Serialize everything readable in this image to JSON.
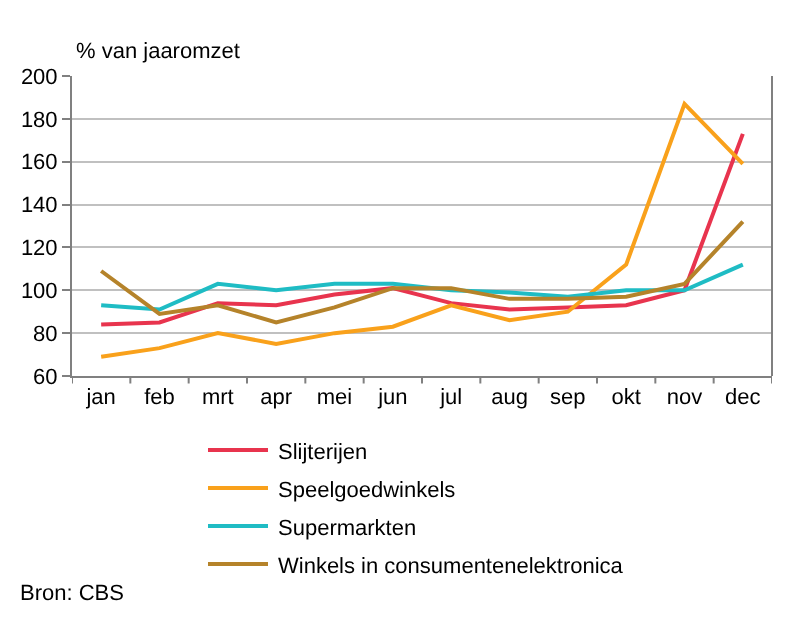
{
  "chart_data": {
    "type": "line",
    "ylabel": "% van jaaromzet",
    "categories": [
      "jan",
      "feb",
      "mrt",
      "apr",
      "mei",
      "jun",
      "jul",
      "aug",
      "sep",
      "okt",
      "nov",
      "dec"
    ],
    "series": [
      {
        "name": "Slijterijen",
        "color": "#e8344e",
        "values": [
          84,
          85,
          94,
          93,
          98,
          101,
          94,
          91,
          92,
          93,
          100,
          173
        ]
      },
      {
        "name": "Speelgoedwinkels",
        "color": "#f9a11b",
        "values": [
          69,
          73,
          80,
          75,
          80,
          83,
          93,
          86,
          90,
          112,
          187,
          159
        ]
      },
      {
        "name": "Supermarkten",
        "color": "#1fbcc4",
        "values": [
          93,
          91,
          103,
          100,
          103,
          103,
          100,
          99,
          97,
          100,
          100,
          112
        ]
      },
      {
        "name": "Winkels in consumentenelektronica",
        "color": "#b5832a",
        "values": [
          109,
          89,
          93,
          85,
          92,
          101,
          101,
          96,
          96,
          97,
          103,
          132
        ]
      }
    ],
    "ylim": [
      60,
      200
    ],
    "yticks": [
      60,
      80,
      100,
      120,
      140,
      160,
      180,
      200
    ],
    "grid": "y",
    "legend": "bottom",
    "marker": "none",
    "line_style": "solid",
    "annotations": [
      "Bron: CBS"
    ]
  }
}
